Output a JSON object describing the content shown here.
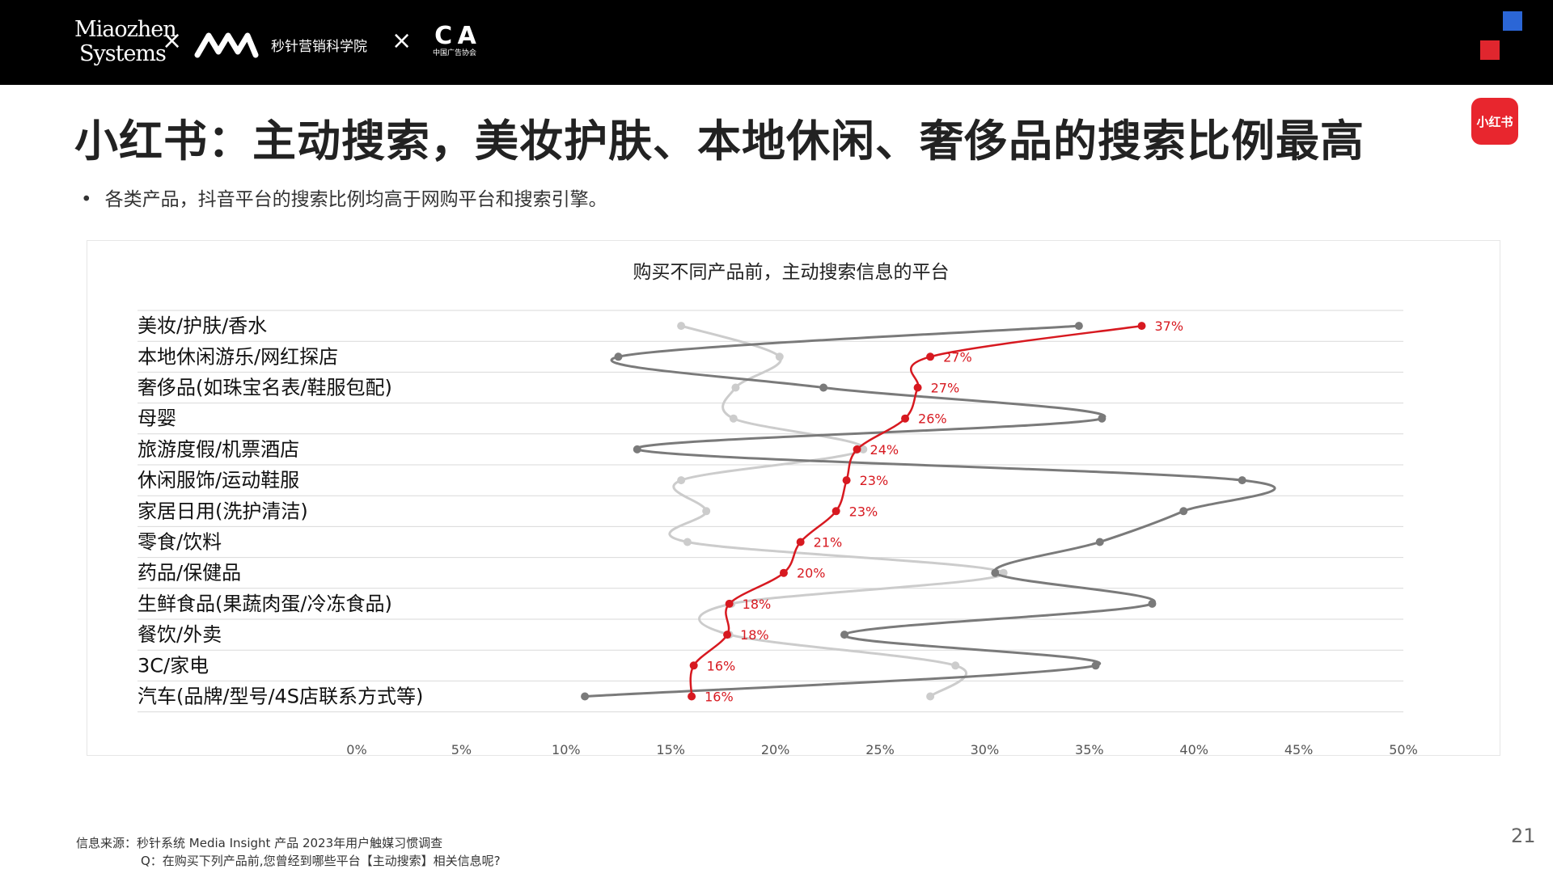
{
  "header": {
    "logo_miaozhen_line1": "Miaozhen",
    "logo_miaozhen_line2": "Systems",
    "separator": "×",
    "academy_name": "秒针营销科学院",
    "caa_logo": "C A",
    "caa_subtitle": "中国广告协会"
  },
  "badge": {
    "label": "小红书"
  },
  "title": "小红书：主动搜索，美妆护肤、本地休闲、奢侈品的搜索比例最高",
  "bullet": "各类产品，抖音平台的搜索比例均高于网购平台和搜索引擎。",
  "chart_data": {
    "type": "line",
    "title": "购买不同产品前，主动搜索信息的平台",
    "categories": [
      "美妆/护肤/香水",
      "本地休闲游乐/网红探店",
      "奢侈品(如珠宝名表/鞋服包配)",
      "母婴",
      "旅游度假/机票酒店",
      "休闲服饰/运动鞋服",
      "家居日用(洗护清洁)",
      "零食/饮料",
      "药品/保健品",
      "生鲜食品(果蔬肉蛋/冷冻食品)",
      "餐饮/外卖",
      "3C/家电",
      "汽车(品牌/型号/4S店联系方式等)"
    ],
    "x_ticks": [
      "0%",
      "5%",
      "10%",
      "15%",
      "20%",
      "25%",
      "30%",
      "35%",
      "40%",
      "45%",
      "50%"
    ],
    "xlim": [
      0,
      50
    ],
    "orientation": "categories on vertical axis, values on horizontal axis",
    "legend_position": "bottom",
    "series": [
      {
        "name": "小红书",
        "color": "#d71920",
        "values": [
          37.5,
          27.4,
          26.8,
          26.2,
          23.9,
          23.4,
          22.9,
          21.2,
          20.4,
          17.8,
          17.7,
          16.1,
          16.0
        ],
        "labels": [
          "37%",
          "27%",
          "27%",
          "26%",
          "24%",
          "23%",
          "23%",
          "21%",
          "20%",
          "18%",
          "18%",
          "16%",
          "16%"
        ]
      },
      {
        "name": "网购平台",
        "color": "#7a7a7a",
        "values": [
          34.5,
          12.5,
          22.3,
          35.6,
          13.4,
          42.3,
          39.5,
          35.5,
          30.5,
          38.0,
          23.3,
          35.3,
          10.9
        ]
      },
      {
        "name": "搜索引擎",
        "color": "#cccccc",
        "values": [
          15.5,
          20.2,
          18.1,
          18.0,
          24.2,
          15.5,
          16.7,
          15.8,
          30.9,
          17.9,
          17.8,
          28.6,
          27.4
        ]
      }
    ]
  },
  "footer": {
    "source": "信息来源：秒针系统 Media Insight 产品 2023年用户触媒习惯调查",
    "question": "Q：在购买下列产品前,您曾经到哪些平台【主动搜索】相关信息呢?",
    "page_number": "21"
  }
}
